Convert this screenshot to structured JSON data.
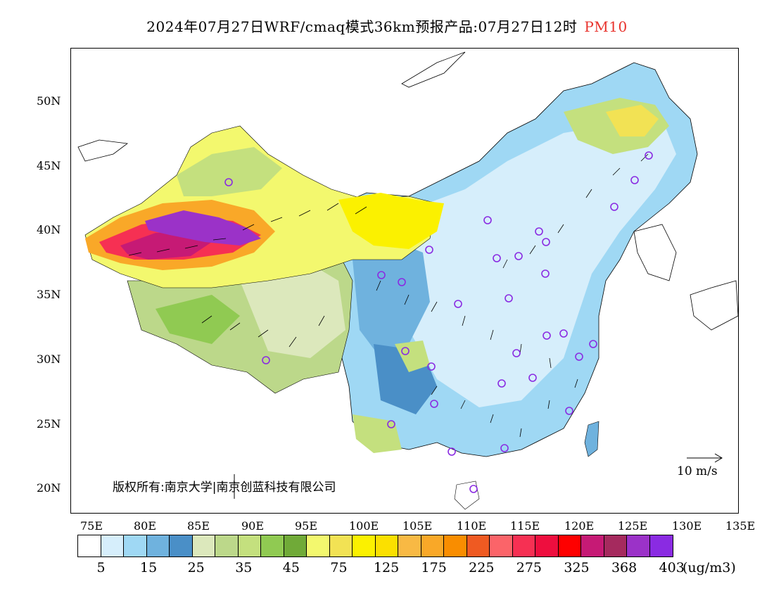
{
  "title": {
    "main": "2024年07月27日WRF/cmaq模式36km预报产品:07月27日12时",
    "pollutant": "PM10"
  },
  "map": {
    "lat_ticks": [
      "50N",
      "45N",
      "40N",
      "35N",
      "30N",
      "25N",
      "20N"
    ],
    "lon_ticks": [
      "75E",
      "80E",
      "85E",
      "90E",
      "95E",
      "100E",
      "105E",
      "110E",
      "115E",
      "120E",
      "125E",
      "130E",
      "135E"
    ],
    "copyright": "版权所有:南京大学|南京创蓝科技有限公司",
    "wind_scale_label": "10 m/s"
  },
  "legend": {
    "colors": [
      "#ffffff",
      "#d6eefb",
      "#9fd8f4",
      "#6fb2de",
      "#4a8fc7",
      "#dce8bc",
      "#bcd88a",
      "#c4e07e",
      "#90ca52",
      "#70aa38",
      "#f3f86e",
      "#f2e254",
      "#fbf100",
      "#fbe000",
      "#f8b944",
      "#f9a828",
      "#f98d00",
      "#ef5a22",
      "#fb6469",
      "#f63053",
      "#ee0e3e",
      "#fe0000",
      "#c61a75",
      "#a52a5e",
      "#9b32c8",
      "#8a2be2"
    ],
    "labels": [
      "5",
      "15",
      "25",
      "35",
      "45",
      "75",
      "125",
      "175",
      "225",
      "275",
      "325",
      "368",
      "403"
    ],
    "unit": "(ug/m3)"
  }
}
